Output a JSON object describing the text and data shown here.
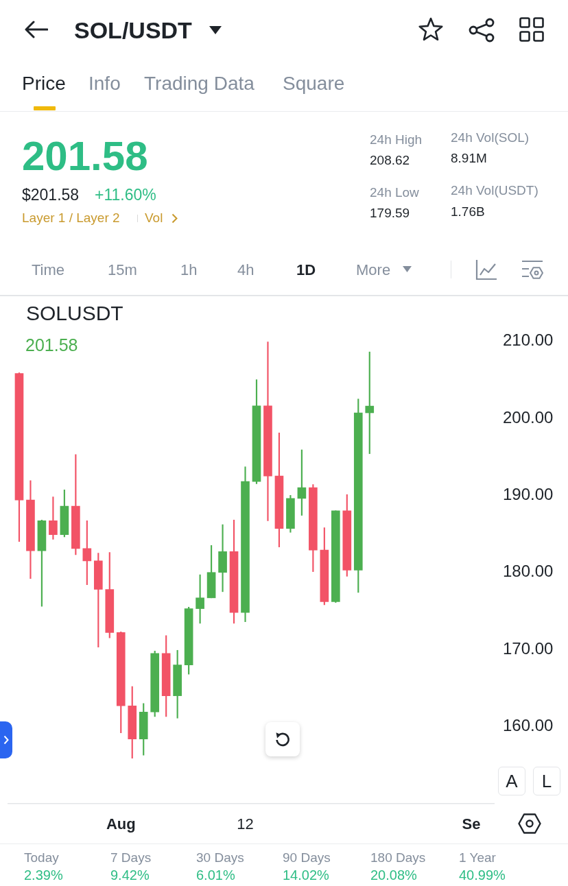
{
  "chart_data": [
    {
      "type": "other",
      "title": "SOL/USDT",
      "annotations": [
        "Price",
        "Info",
        "Trading Data",
        "Square",
        "201.58",
        "$201.58",
        "+11.60%",
        "Layer 1 / Layer 2",
        "Vol",
        "24h High",
        "208.62",
        "24h Vol(SOL)",
        "8.91M",
        "24h Low",
        "179.59",
        "24h Vol(USDT)",
        "1.76B",
        "Time",
        "15m",
        "1h",
        "4h",
        "1D",
        "More"
      ]
    },
    {
      "type": "candlestick",
      "title": "SOLUSDT",
      "annotations": [
        "201.58",
        "A",
        "L"
      ],
      "x": [
        "--07-23",
        "--07-24",
        "--07-25",
        "--07-26",
        "--07-27",
        "--07-28",
        "--07-29",
        "--07-30",
        "--07-31",
        "--08-01",
        "--08-02",
        "--08-03",
        "--08-04",
        "--08-05",
        "--08-06",
        "--08-07",
        "--08-08",
        "--08-09",
        "--08-10",
        "--08-11",
        "--08-12",
        "--08-13",
        "--08-14",
        "--08-15",
        "--08-16",
        "--08-17",
        "--08-18",
        "--08-19",
        "--08-20",
        "--08-21",
        "--08-22",
        "--08-23"
      ],
      "ohlc": [
        [
          205.8,
          205.9,
          184.0,
          189.4
        ],
        [
          189.4,
          191.9,
          179.2,
          182.8
        ],
        [
          182.8,
          186.8,
          175.6,
          186.7
        ],
        [
          186.7,
          189.8,
          184.3,
          184.9
        ],
        [
          184.9,
          190.7,
          184.6,
          188.6
        ],
        [
          188.6,
          195.3,
          182.3,
          183.1
        ],
        [
          183.1,
          186.7,
          178.4,
          181.5
        ],
        [
          181.5,
          182.5,
          170.3,
          177.8
        ],
        [
          177.8,
          182.6,
          171.5,
          172.2
        ],
        [
          172.2,
          172.3,
          159.2,
          162.7
        ],
        [
          162.7,
          165.2,
          155.9,
          158.4
        ],
        [
          158.4,
          163.0,
          156.3,
          161.9
        ],
        [
          161.9,
          169.8,
          161.3,
          169.5
        ],
        [
          169.5,
          171.8,
          161.3,
          164.0
        ],
        [
          164.0,
          169.9,
          161.1,
          168.0
        ],
        [
          168.0,
          175.5,
          166.8,
          175.3
        ],
        [
          175.3,
          179.7,
          173.4,
          176.7
        ],
        [
          176.7,
          183.5,
          176.7,
          180.0
        ],
        [
          180.0,
          186.2,
          177.5,
          182.7
        ],
        [
          182.7,
          186.8,
          173.4,
          174.8
        ],
        [
          174.8,
          193.7,
          173.6,
          191.8
        ],
        [
          191.8,
          205.0,
          191.5,
          201.6
        ],
        [
          201.6,
          209.9,
          186.7,
          192.5
        ],
        [
          192.5,
          198.1,
          183.3,
          185.7
        ],
        [
          185.7,
          190.0,
          185.2,
          189.6
        ],
        [
          189.6,
          195.9,
          187.4,
          191.0
        ],
        [
          191.0,
          191.4,
          180.1,
          182.9
        ],
        [
          182.9,
          185.8,
          175.8,
          176.2
        ],
        [
          176.2,
          188.0,
          176.1,
          188.0
        ],
        [
          188.0,
          190.1,
          179.5,
          180.3
        ],
        [
          180.3,
          202.5,
          177.4,
          200.7
        ],
        [
          200.7,
          208.6,
          195.4,
          201.58
        ]
      ],
      "colors": [
        "#f25366",
        "#f25366",
        "#4caf50",
        "#f25366",
        "#4caf50",
        "#f25366",
        "#f25366",
        "#f25366",
        "#f25366",
        "#f25366",
        "#f25366",
        "#4caf50",
        "#4caf50",
        "#f25366",
        "#4caf50",
        "#4caf50",
        "#4caf50",
        "#4caf50",
        "#4caf50",
        "#f25366",
        "#4caf50",
        "#4caf50",
        "#f25366",
        "#f25366",
        "#4caf50",
        "#4caf50",
        "#f25366",
        "#f25366",
        "#4caf50",
        "#f25366",
        "#4caf50",
        "#4caf50"
      ],
      "xlim": [
        "--07-22",
        "--09-03"
      ],
      "xticks": [
        {
          "value": "--08-01",
          "label": "Aug"
        },
        {
          "value": "--08-12",
          "label": "12"
        },
        {
          "value": "--09-01",
          "label": "Se"
        }
      ],
      "ylim": [
        150,
        216
      ],
      "yticks": [
        {
          "value": 160,
          "label": "160.00"
        },
        {
          "value": 170,
          "label": "170.00"
        },
        {
          "value": 180,
          "label": "180.00"
        },
        {
          "value": 190,
          "label": "190.00"
        },
        {
          "value": 200,
          "label": "200.00"
        },
        {
          "value": 210,
          "label": "210.00"
        }
      ]
    },
    {
      "type": "other",
      "annotations": [
        "Today",
        "2.39%",
        "7 Days",
        "9.42%",
        "30 Days",
        "6.01%",
        "90 Days",
        "14.02%",
        "180 Days",
        "20.08%",
        "1 Year",
        "40.99%"
      ]
    }
  ]
}
